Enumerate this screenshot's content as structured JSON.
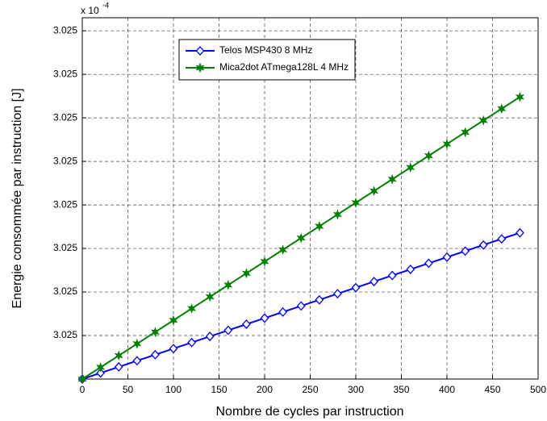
{
  "chart_data": {
    "type": "line",
    "xlabel": "Nombre de cycles par instruction",
    "ylabel": "Energie consommée par instruction [J]",
    "multiplier": "x 10",
    "exponent": "-4",
    "x": [
      0,
      20,
      40,
      60,
      80,
      100,
      120,
      140,
      160,
      180,
      200,
      220,
      240,
      260,
      280,
      300,
      320,
      340,
      360,
      380,
      400,
      420,
      440,
      460,
      480
    ],
    "series": [
      {
        "name": "Telos MSP430 8 MHz",
        "color": "#0000ff",
        "marker": "diamond",
        "values": [
          3.025,
          3.0250014,
          3.0250028,
          3.0250042,
          3.0250056,
          3.025007,
          3.0250084,
          3.0250098,
          3.0250112,
          3.0250126,
          3.025014,
          3.0250154,
          3.0250168,
          3.0250182,
          3.0250196,
          3.025021,
          3.0250224,
          3.0250238,
          3.0250252,
          3.0250266,
          3.025028,
          3.0250294,
          3.0250308,
          3.0250322,
          3.0250336
        ]
      },
      {
        "name": "Mica2dot ATmega128L 4 MHz",
        "color": "#008000",
        "marker": "star",
        "values": [
          3.025,
          3.0250027,
          3.0250054,
          3.0250081,
          3.0250108,
          3.0250135,
          3.0250162,
          3.0250189,
          3.0250216,
          3.0250243,
          3.025027,
          3.0250297,
          3.0250324,
          3.0250351,
          3.0250378,
          3.0250405,
          3.0250432,
          3.0250459,
          3.0250486,
          3.0250513,
          3.025054,
          3.0250567,
          3.0250594,
          3.0250621,
          3.0250648
        ]
      }
    ],
    "xlim": [
      0,
      500
    ],
    "xticks": [
      0,
      50,
      100,
      150,
      200,
      250,
      300,
      350,
      400,
      450,
      500
    ],
    "ylim": [
      3.025,
      3.025083
    ],
    "yticks": [
      {
        "value": 3.02501,
        "label": "3.025"
      },
      {
        "value": 3.02502,
        "label": "3.025"
      },
      {
        "value": 3.02503,
        "label": "3.025"
      },
      {
        "value": 3.02504,
        "label": "3.025"
      },
      {
        "value": 3.02505,
        "label": "3.025"
      },
      {
        "value": 3.02506,
        "label": "3.025"
      },
      {
        "value": 3.02507,
        "label": "3.025"
      },
      {
        "value": 3.02508,
        "label": "3.025"
      }
    ],
    "grid": true,
    "legend": "top"
  }
}
